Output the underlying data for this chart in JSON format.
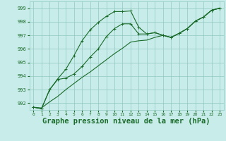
{
  "background_color": "#c8ece9",
  "grid_color": "#90c8c0",
  "line_color": "#1a6b2a",
  "marker_color": "#1a6b2a",
  "xlabel": "Graphe pression niveau de la mer (hPa)",
  "xlabel_fontsize": 7.5,
  "xlim": [
    -0.5,
    23.5
  ],
  "ylim": [
    991.5,
    999.5
  ],
  "yticks": [
    992,
    993,
    994,
    995,
    996,
    997,
    998,
    999
  ],
  "xticks": [
    0,
    1,
    2,
    3,
    4,
    5,
    6,
    7,
    8,
    9,
    10,
    11,
    12,
    13,
    14,
    15,
    16,
    17,
    18,
    19,
    20,
    21,
    22,
    23
  ],
  "line1": [
    991.7,
    991.6,
    993.0,
    993.8,
    994.5,
    995.5,
    996.6,
    997.4,
    997.95,
    998.4,
    998.75,
    998.75,
    998.8,
    997.6,
    997.1,
    997.2,
    997.0,
    996.85,
    997.15,
    997.5,
    998.05,
    998.35,
    998.85,
    999.0
  ],
  "line2": [
    991.7,
    991.6,
    993.0,
    993.75,
    993.85,
    994.15,
    994.7,
    995.4,
    996.0,
    996.9,
    997.5,
    997.85,
    997.85,
    997.1,
    997.1,
    997.2,
    997.0,
    996.85,
    997.15,
    997.5,
    998.05,
    998.35,
    998.85,
    999.0
  ],
  "line3": [
    991.7,
    991.65,
    992.1,
    992.5,
    993.0,
    993.45,
    993.9,
    994.3,
    994.75,
    995.2,
    995.65,
    996.05,
    996.5,
    996.6,
    996.65,
    996.85,
    997.0,
    996.85,
    997.15,
    997.5,
    998.05,
    998.35,
    998.85,
    999.0
  ]
}
